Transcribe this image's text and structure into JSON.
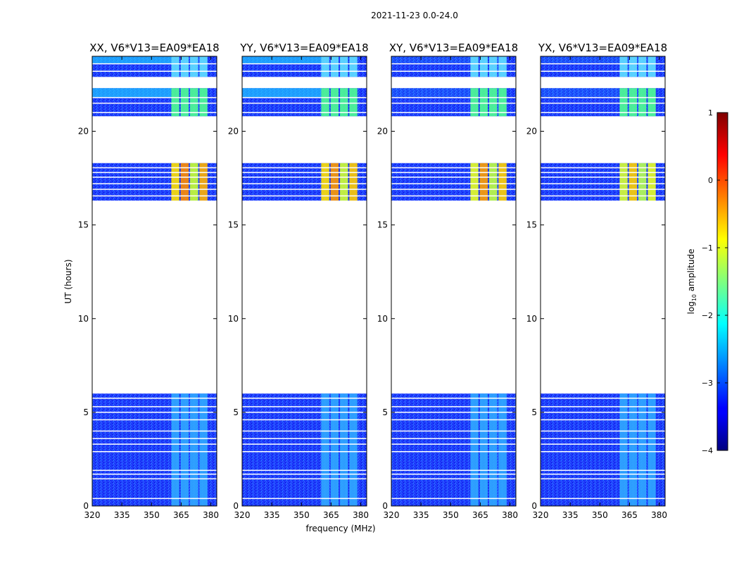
{
  "figure": {
    "suptitle": "2021-11-23 0.0-24.0",
    "xlabel": "frequency (MHz)",
    "ylabel": "UT (hours)"
  },
  "chart_data": {
    "type": "heatmap",
    "colormap": "jet",
    "x_ticks": [
      "320",
      "335",
      "350",
      "365",
      "380"
    ],
    "x_tick_values": [
      320,
      335,
      350,
      365,
      380
    ],
    "xlim": [
      320,
      383
    ],
    "y_ticks": [
      "0",
      "5",
      "10",
      "15",
      "20"
    ],
    "y_tick_values": [
      0,
      5,
      10,
      15,
      20
    ],
    "ylim": [
      0,
      24
    ],
    "panels": [
      {
        "title": "XX, V6*V13=EA09*EA18",
        "key": "XX"
      },
      {
        "title": "YY, V6*V13=EA09*EA18",
        "key": "YY"
      },
      {
        "title": "XY, V6*V13=EA09*EA18",
        "key": "XY"
      },
      {
        "title": "YX, V6*V13=EA09*EA18",
        "key": "YX"
      }
    ],
    "data_time_ranges_hours": [
      [
        0,
        6.0
      ],
      [
        16.3,
        18.3
      ],
      [
        20.8,
        22.3
      ],
      [
        22.9,
        24.0
      ]
    ],
    "gap_lines_hours": [
      0.4,
      1.45,
      1.7,
      1.9,
      2.9,
      3.3,
      3.6,
      4.0,
      4.6,
      5.0,
      5.3,
      5.75,
      16.55,
      16.9,
      17.2,
      17.55,
      17.8,
      18.05,
      21.0,
      21.5,
      21.8,
      23.2,
      23.6
    ],
    "rfi_band_mhz": [
      360,
      379
    ],
    "colorbar": {
      "label": "log",
      "label_sub": "10",
      "label_rest": " amplitude",
      "ticks": [
        "1",
        "0",
        "−1",
        "−2",
        "−3",
        "−4"
      ],
      "tick_values": [
        1,
        0,
        -1,
        -2,
        -3,
        -4
      ],
      "range": [
        -4,
        1
      ]
    }
  }
}
